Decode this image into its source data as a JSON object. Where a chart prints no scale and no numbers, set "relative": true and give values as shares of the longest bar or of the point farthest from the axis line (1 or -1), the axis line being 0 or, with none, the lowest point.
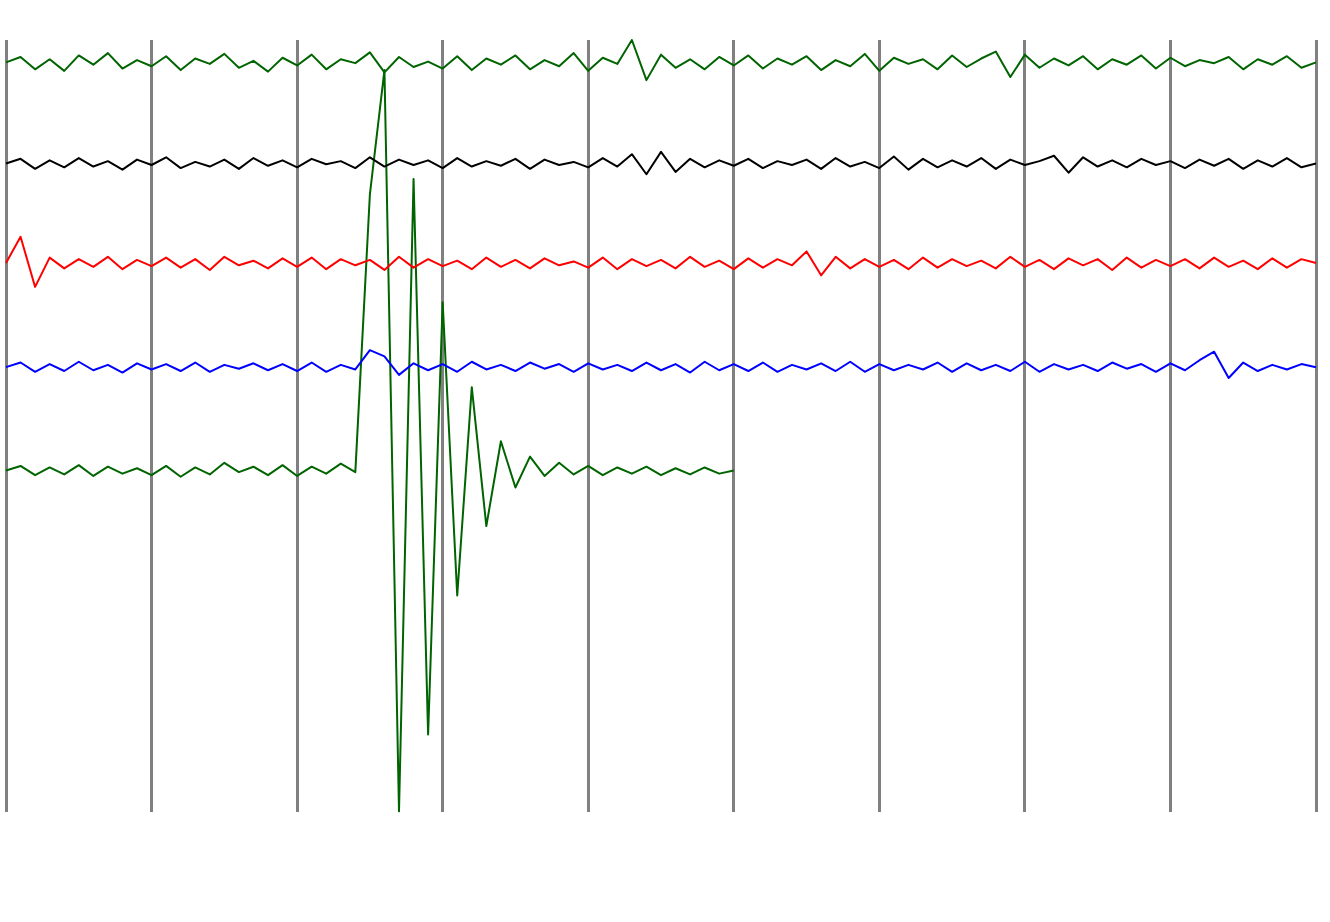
{
  "chart_data": {
    "type": "line",
    "relative": true,
    "grid": "x",
    "categories": [
      null,
      null,
      null,
      null,
      null,
      null,
      null,
      null,
      null,
      null,
      null,
      null,
      null,
      null,
      null,
      null,
      null,
      null,
      null,
      null,
      null,
      null,
      null,
      null,
      null,
      null,
      null,
      null,
      null,
      null,
      null,
      null,
      null,
      null,
      null,
      null,
      null,
      null,
      null,
      null,
      null,
      null,
      null,
      null,
      null,
      null,
      null,
      null,
      null,
      null,
      null,
      null,
      null,
      null,
      null,
      null,
      null,
      null,
      null,
      null,
      null,
      null,
      null,
      null,
      null,
      null,
      null,
      null,
      null,
      null,
      null,
      null,
      null,
      null,
      null,
      null,
      null,
      null,
      null,
      null,
      null,
      null,
      null,
      null,
      null,
      null,
      null,
      null,
      null,
      null,
      null
    ],
    "series": [
      {
        "color": "#006400",
        "values": [
          0.971,
          0.978,
          0.962,
          0.975,
          0.96,
          0.98,
          0.968,
          0.983,
          0.963,
          0.974,
          0.966,
          0.979,
          0.961,
          0.976,
          0.969,
          0.982,
          0.964,
          0.973,
          0.959,
          0.977,
          0.967,
          0.981,
          0.962,
          0.975,
          0.97,
          0.984,
          0.958,
          0.978,
          0.965,
          0.972,
          0.963,
          0.979,
          0.961,
          0.976,
          0.968,
          0.98,
          0.962,
          0.974,
          0.966,
          0.983,
          0.96,
          0.977,
          0.969,
          1.0,
          0.948,
          0.981,
          0.964,
          0.975,
          0.962,
          0.978,
          0.967,
          0.98,
          0.963,
          0.976,
          0.968,
          0.979,
          0.961,
          0.974,
          0.966,
          0.982,
          0.96,
          0.977,
          0.969,
          0.975,
          0.962,
          0.98,
          0.965,
          0.976,
          0.985,
          0.952,
          0.981,
          0.964,
          0.976,
          0.967,
          0.979,
          0.962,
          0.975,
          0.968,
          0.98,
          0.963,
          0.977,
          0.966,
          0.974,
          0.97,
          0.978,
          0.962,
          0.975,
          0.968,
          0.979,
          0.964,
          0.971
        ]
      },
      {
        "color": "#000000",
        "values": [
          0.84,
          0.846,
          0.833,
          0.844,
          0.835,
          0.847,
          0.836,
          0.843,
          0.832,
          0.845,
          0.838,
          0.848,
          0.834,
          0.842,
          0.836,
          0.845,
          0.833,
          0.847,
          0.837,
          0.844,
          0.835,
          0.846,
          0.839,
          0.843,
          0.834,
          0.848,
          0.836,
          0.845,
          0.838,
          0.844,
          0.834,
          0.847,
          0.836,
          0.843,
          0.837,
          0.846,
          0.833,
          0.845,
          0.838,
          0.842,
          0.835,
          0.847,
          0.836,
          0.852,
          0.826,
          0.855,
          0.829,
          0.846,
          0.835,
          0.844,
          0.837,
          0.846,
          0.834,
          0.843,
          0.838,
          0.845,
          0.833,
          0.847,
          0.836,
          0.842,
          0.834,
          0.849,
          0.832,
          0.846,
          0.835,
          0.844,
          0.836,
          0.847,
          0.833,
          0.845,
          0.838,
          0.843,
          0.85,
          0.828,
          0.848,
          0.836,
          0.844,
          0.835,
          0.846,
          0.838,
          0.843,
          0.834,
          0.845,
          0.837,
          0.846,
          0.833,
          0.844,
          0.836,
          0.847,
          0.835,
          0.84
        ]
      },
      {
        "color": "#ff0000",
        "values": [
          0.711,
          0.745,
          0.68,
          0.718,
          0.704,
          0.716,
          0.706,
          0.719,
          0.703,
          0.715,
          0.707,
          0.718,
          0.705,
          0.716,
          0.702,
          0.719,
          0.708,
          0.714,
          0.704,
          0.717,
          0.706,
          0.718,
          0.703,
          0.716,
          0.708,
          0.715,
          0.702,
          0.719,
          0.705,
          0.716,
          0.707,
          0.714,
          0.703,
          0.718,
          0.706,
          0.715,
          0.704,
          0.717,
          0.708,
          0.713,
          0.705,
          0.718,
          0.703,
          0.716,
          0.707,
          0.715,
          0.704,
          0.719,
          0.706,
          0.714,
          0.703,
          0.717,
          0.705,
          0.716,
          0.708,
          0.726,
          0.695,
          0.719,
          0.704,
          0.716,
          0.706,
          0.715,
          0.703,
          0.718,
          0.705,
          0.716,
          0.707,
          0.714,
          0.704,
          0.719,
          0.706,
          0.715,
          0.703,
          0.717,
          0.708,
          0.716,
          0.702,
          0.718,
          0.705,
          0.715,
          0.707,
          0.716,
          0.704,
          0.718,
          0.706,
          0.714,
          0.703,
          0.717,
          0.705,
          0.716,
          0.711
        ]
      },
      {
        "color": "#0000ff",
        "values": [
          0.576,
          0.582,
          0.57,
          0.58,
          0.571,
          0.583,
          0.572,
          0.579,
          0.569,
          0.581,
          0.573,
          0.58,
          0.571,
          0.582,
          0.57,
          0.579,
          0.574,
          0.581,
          0.572,
          0.58,
          0.571,
          0.582,
          0.57,
          0.579,
          0.573,
          0.598,
          0.59,
          0.566,
          0.581,
          0.572,
          0.58,
          0.57,
          0.583,
          0.573,
          0.579,
          0.571,
          0.582,
          0.574,
          0.58,
          0.57,
          0.581,
          0.573,
          0.579,
          0.571,
          0.582,
          0.572,
          0.58,
          0.569,
          0.583,
          0.572,
          0.58,
          0.571,
          0.582,
          0.57,
          0.579,
          0.573,
          0.581,
          0.571,
          0.583,
          0.57,
          0.58,
          0.572,
          0.579,
          0.573,
          0.582,
          0.57,
          0.581,
          0.572,
          0.579,
          0.571,
          0.583,
          0.57,
          0.58,
          0.573,
          0.579,
          0.571,
          0.582,
          0.574,
          0.58,
          0.57,
          0.581,
          0.572,
          0.585,
          0.596,
          0.562,
          0.582,
          0.571,
          0.579,
          0.573,
          0.58,
          0.576
        ]
      },
      {
        "color": "#006400",
        "values": [
          0.442,
          0.448,
          0.436,
          0.446,
          0.437,
          0.449,
          0.435,
          0.447,
          0.438,
          0.445,
          0.436,
          0.448,
          0.434,
          0.446,
          0.437,
          0.452,
          0.44,
          0.447,
          0.436,
          0.449,
          0.435,
          0.447,
          0.438,
          0.451,
          0.44,
          0.8,
          0.961,
          0,
          0.82,
          0.1,
          0.66,
          0.28,
          0.55,
          0.37,
          0.48,
          0.42,
          0.46,
          0.435,
          0.452,
          0.437,
          0.448,
          0.436,
          0.446,
          0.438,
          0.447,
          0.436,
          0.445,
          0.437,
          0.446,
          0.438,
          0.442,
          null,
          null,
          null,
          null,
          null,
          null,
          null,
          null,
          null,
          null,
          null,
          null,
          null,
          null,
          null,
          null,
          null,
          null,
          null,
          null,
          null,
          null,
          null,
          null,
          null,
          null,
          null,
          null,
          null,
          null,
          null,
          null,
          null,
          null,
          null,
          null,
          null,
          null,
          null,
          null
        ]
      }
    ]
  }
}
